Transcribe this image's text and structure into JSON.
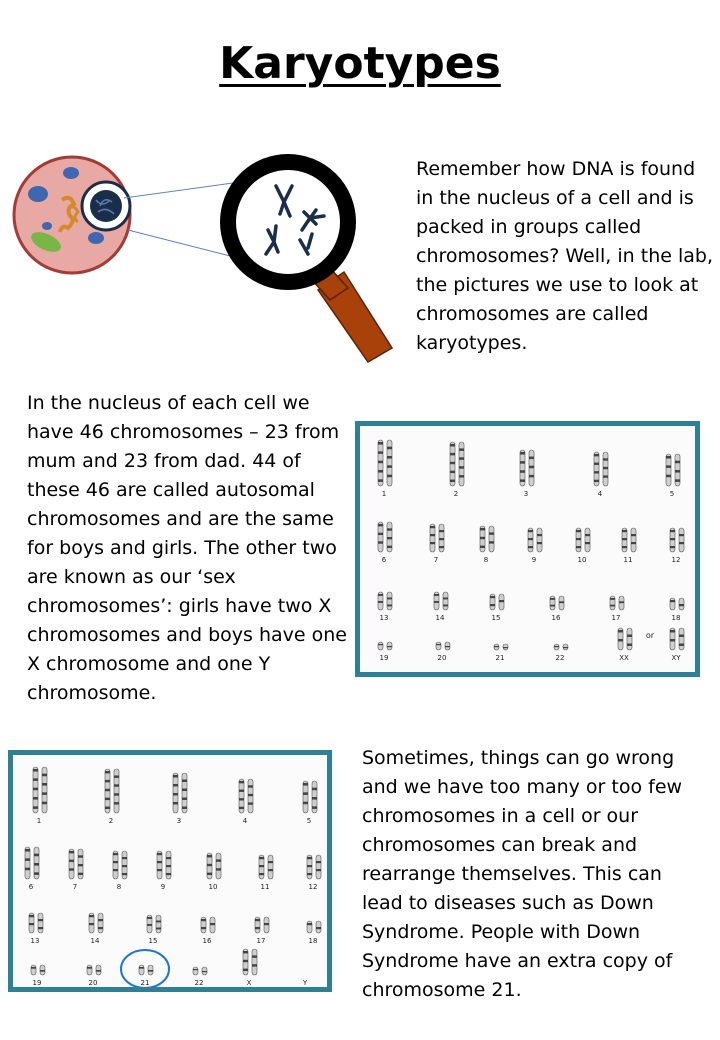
{
  "page": {
    "title": "Karyotypes"
  },
  "paragraphs": {
    "intro": "Remember how DNA is found in the nucleus of a cell and is packed in groups called chromosomes? Well, in the lab, the pictures we use to look at chromosomes are called karyotypes.",
    "chromosome_count": "In the nucleus of each cell we have 46 chromosomes – 23 from mum and 23 from dad. 44 of these 46 are called autosomal chromosomes and are the same for boys and girls. The other two are known as our ‘sex chromosomes’: girls have two X chromosomes and boys have one X chromosome and one Y chromosome.",
    "abnormal": "Sometimes, things can go wrong and we have too many or too few chromosomes in a cell or our chromosomes can break and rearrange themselves. This can lead to diseases such as Down Syndrome. People with Down Syndrome have an extra copy of chromosome 21."
  },
  "karyotype_normal": {
    "labels": [
      "1",
      "2",
      "3",
      "4",
      "5",
      "6",
      "7",
      "8",
      "9",
      "10",
      "11",
      "12",
      "13",
      "14",
      "15",
      "16",
      "17",
      "18",
      "19",
      "20",
      "21",
      "22",
      "XX",
      "or",
      "XY"
    ]
  },
  "karyotype_down": {
    "labels": [
      "1",
      "2",
      "3",
      "4",
      "5",
      "6",
      "7",
      "8",
      "9",
      "10",
      "11",
      "12",
      "13",
      "14",
      "15",
      "16",
      "17",
      "18",
      "19",
      "20",
      "21",
      "22",
      "X",
      "Y"
    ],
    "highlighted": "21"
  },
  "colors": {
    "frame_border": "#2f7f95",
    "cell_fill": "#e8a9a4",
    "cell_border": "#a33b36",
    "lens_handle": "#a8410a",
    "chromosome": "#1a2e4a",
    "highlight_circle": "#1f73d8"
  },
  "icons": [
    "cell-icon",
    "magnifying-glass-icon"
  ]
}
